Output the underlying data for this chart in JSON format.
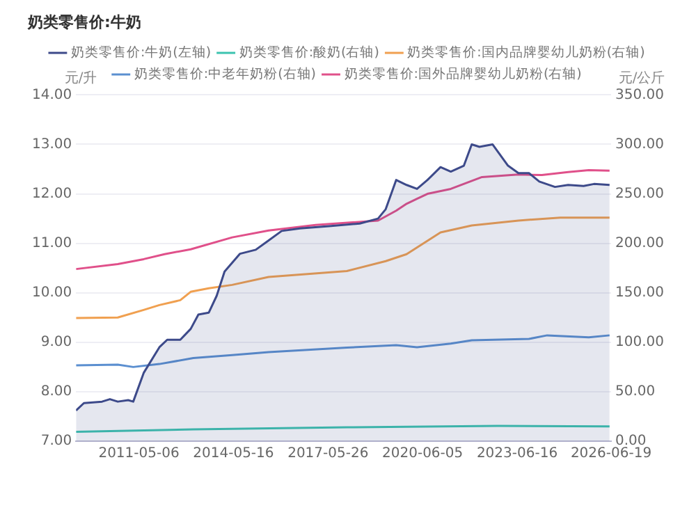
{
  "chart_data": {
    "type": "line",
    "title": "奶类零售价:牛奶",
    "ylabel": "元/升",
    "y2label": "元/公斤",
    "xlim": [
      "2009-05",
      "2026-06-19"
    ],
    "xticks": [
      "2011-05-06",
      "2014-05-16",
      "2017-05-26",
      "2020-06-05",
      "2023-06-16",
      "2026-06-19"
    ],
    "ylim": [
      7,
      14
    ],
    "yticks": [
      {
        "value": 7,
        "label": "7.00"
      },
      {
        "value": 8,
        "label": "8.00"
      },
      {
        "value": 9,
        "label": "9.00"
      },
      {
        "value": 10,
        "label": "10.00"
      },
      {
        "value": 11,
        "label": "11.00"
      },
      {
        "value": 12,
        "label": "12.00"
      },
      {
        "value": 13,
        "label": "13.00"
      },
      {
        "value": 14,
        "label": "14.00"
      }
    ],
    "y2lim": [
      0,
      350
    ],
    "y2ticks": [
      {
        "value": 0,
        "label": "0.00"
      },
      {
        "value": 50,
        "label": "50.00"
      },
      {
        "value": 100,
        "label": "100.00"
      },
      {
        "value": 150,
        "label": "150.00"
      },
      {
        "value": 200,
        "label": "200.00"
      },
      {
        "value": 250,
        "label": "250.00"
      },
      {
        "value": 300,
        "label": "300.00"
      },
      {
        "value": 350,
        "label": "350.00"
      }
    ],
    "grid": "y",
    "legend": "top",
    "marker": "none",
    "line_style": "solid",
    "series": [
      {
        "name": "奶类零售价:牛奶(左轴)",
        "type": "area",
        "color": "#3d4a8a",
        "x": [
          "2009-05",
          "2009-08",
          "2010-03",
          "2010-06",
          "2010-09",
          "2011-01",
          "2011-03",
          "2011-07",
          "2012-01",
          "2012-04",
          "2012-09",
          "2013-01",
          "2013-04",
          "2013-08",
          "2013-11",
          "2014-02",
          "2014-08",
          "2015-02",
          "2015-06",
          "2015-12",
          "2016-07",
          "2017-07",
          "2018-06",
          "2019-01",
          "2019-04",
          "2019-08",
          "2019-12",
          "2020-04",
          "2020-08",
          "2021-01",
          "2021-05",
          "2021-10",
          "2022-01",
          "2022-04",
          "2022-09",
          "2023-03",
          "2023-07",
          "2023-11",
          "2024-03",
          "2024-09",
          "2025-02",
          "2025-08",
          "2025-12",
          "2026-06"
        ],
        "values": [
          7.62,
          7.77,
          7.8,
          7.85,
          7.8,
          7.83,
          7.8,
          8.38,
          8.9,
          9.05,
          9.05,
          9.27,
          9.56,
          9.6,
          9.94,
          10.43,
          10.79,
          10.87,
          11.02,
          11.25,
          11.3,
          11.35,
          11.4,
          11.5,
          11.69,
          12.28,
          12.18,
          12.1,
          12.28,
          12.54,
          12.45,
          12.57,
          13.0,
          12.95,
          13.0,
          12.57,
          12.42,
          12.42,
          12.25,
          12.14,
          12.18,
          12.16,
          12.2,
          12.18
        ]
      },
      {
        "name": "奶类零售价:酸奶(右轴)",
        "axis": "y2",
        "color": "#3cc3b0",
        "x": [
          "2009-05",
          "2013-02",
          "2018-01",
          "2022-11",
          "2026-06"
        ],
        "values": [
          9.5,
          12,
          14,
          15.5,
          15
        ]
      },
      {
        "name": "奶类零售价:国内品牌婴幼儿奶粉(右轴)",
        "axis": "y2",
        "color": "#f0a050",
        "x": [
          "2009-05",
          "2010-09",
          "2011-07",
          "2012-01",
          "2012-09",
          "2013-01",
          "2013-08",
          "2014-05",
          "2015-07",
          "2018-01",
          "2019-04",
          "2019-12",
          "2021-01",
          "2022-01",
          "2023-07",
          "2024-11",
          "2026-06"
        ],
        "values": [
          124.5,
          125,
          132.7,
          137.6,
          142.5,
          151,
          154.6,
          158,
          166,
          172,
          182,
          189,
          211,
          218,
          223,
          226,
          226
        ]
      },
      {
        "name": "奶类零售价:中老年奶粉(右轴)",
        "axis": "y2",
        "color": "#5b8fd0",
        "x": [
          "2009-05",
          "2010-09",
          "2011-03",
          "2012-01",
          "2013-02",
          "2014-05",
          "2015-07",
          "2018-01",
          "2019-08",
          "2020-04",
          "2021-05",
          "2022-01",
          "2023-11",
          "2024-06",
          "2025-10",
          "2026-06"
        ],
        "values": [
          76.6,
          77.3,
          75,
          78,
          84,
          87,
          90,
          94.6,
          97,
          95,
          98.6,
          102,
          103.4,
          107,
          105,
          107
        ]
      },
      {
        "name": "奶类零售价:国外品牌婴幼儿奶粉(右轴)",
        "axis": "y2",
        "color": "#e0508a",
        "x": [
          "2009-05",
          "2010-09",
          "2011-07",
          "2012-03",
          "2013-01",
          "2014-05",
          "2015-07",
          "2017-01",
          "2019-01",
          "2019-08",
          "2019-12",
          "2020-04",
          "2020-08",
          "2021-05",
          "2022-05",
          "2023-07",
          "2024-04",
          "2025-02",
          "2025-10",
          "2026-06"
        ],
        "values": [
          174,
          179,
          184,
          189,
          194,
          206,
          213,
          218.5,
          223,
          233,
          240,
          245,
          250,
          255,
          267,
          269.5,
          269,
          272,
          274,
          273.5
        ]
      }
    ]
  }
}
